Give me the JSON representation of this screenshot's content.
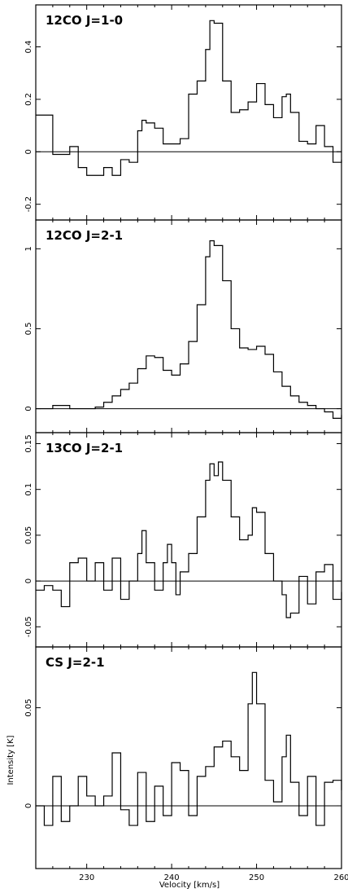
{
  "chart_data": [
    {
      "type": "line",
      "title": "12CO J=1-0",
      "xlim": [
        224,
        260
      ],
      "ylim": [
        -0.26,
        0.56
      ],
      "yticks": [
        -0.2,
        0,
        0.2,
        0.4
      ],
      "ytick_labels": [
        "-0.2",
        "0",
        "0.2",
        "0.4"
      ],
      "step": true,
      "x": [
        224,
        226,
        228,
        229,
        230,
        232,
        233,
        234,
        235,
        236,
        236.5,
        237,
        238,
        239,
        240,
        241,
        242,
        243,
        244,
        244.5,
        245,
        246,
        247,
        248,
        249,
        250,
        251,
        252,
        253,
        253.5,
        254,
        255,
        256,
        257,
        258,
        259,
        260
      ],
      "y": [
        0.14,
        -0.01,
        0.02,
        -0.06,
        -0.09,
        -0.06,
        -0.09,
        -0.03,
        -0.04,
        0.08,
        0.12,
        0.11,
        0.09,
        0.03,
        0.03,
        0.05,
        0.22,
        0.27,
        0.39,
        0.5,
        0.49,
        0.27,
        0.15,
        0.16,
        0.19,
        0.26,
        0.18,
        0.13,
        0.21,
        0.22,
        0.15,
        0.04,
        0.03,
        0.1,
        0.02,
        -0.04,
        -0.03
      ]
    },
    {
      "type": "line",
      "title": "12CO J=2-1",
      "xlim": [
        224,
        260
      ],
      "ylim": [
        -0.15,
        1.18
      ],
      "yticks": [
        0,
        0.5,
        1
      ],
      "ytick_labels": [
        "0",
        "0.5",
        "1"
      ],
      "step": true,
      "x": [
        224,
        226,
        228,
        230,
        231,
        232,
        233,
        234,
        235,
        236,
        237,
        238,
        239,
        240,
        241,
        242,
        243,
        244,
        244.5,
        245,
        246,
        247,
        248,
        249,
        250,
        251,
        252,
        253,
        254,
        255,
        256,
        257,
        258,
        259,
        260
      ],
      "y": [
        0.0,
        0.02,
        0.0,
        0.0,
        0.01,
        0.04,
        0.08,
        0.12,
        0.16,
        0.25,
        0.33,
        0.32,
        0.24,
        0.21,
        0.28,
        0.42,
        0.65,
        0.95,
        1.05,
        1.02,
        0.8,
        0.5,
        0.38,
        0.37,
        0.39,
        0.34,
        0.23,
        0.14,
        0.08,
        0.04,
        0.02,
        0.0,
        -0.02,
        -0.06,
        -0.04
      ]
    },
    {
      "type": "line",
      "title": "13CO J=2-1",
      "xlim": [
        224,
        260
      ],
      "ylim": [
        -0.072,
        0.162
      ],
      "yticks": [
        -0.05,
        0,
        0.05,
        0.1,
        0.15
      ],
      "ytick_labels": [
        "-0.05",
        "0",
        "0.05",
        "0.1",
        "0.15"
      ],
      "step": true,
      "x": [
        224,
        225,
        226,
        227,
        228,
        229,
        230,
        231,
        232,
        233,
        234,
        235,
        236,
        236.5,
        237,
        238,
        239,
        239.5,
        240,
        240.5,
        241,
        242,
        243,
        244,
        244.5,
        245,
        245.5,
        246,
        247,
        248,
        249,
        249.5,
        250,
        251,
        252,
        253,
        253.5,
        254,
        255,
        256,
        257,
        258,
        259,
        260
      ],
      "y": [
        -0.01,
        -0.005,
        -0.01,
        -0.028,
        0.02,
        0.025,
        0.0,
        0.02,
        -0.01,
        0.025,
        -0.02,
        0.0,
        0.03,
        0.055,
        0.02,
        -0.01,
        0.02,
        0.04,
        0.02,
        -0.015,
        0.01,
        0.03,
        0.07,
        0.11,
        0.128,
        0.115,
        0.13,
        0.11,
        0.07,
        0.045,
        0.05,
        0.08,
        0.075,
        0.03,
        0.0,
        -0.015,
        -0.04,
        -0.035,
        0.005,
        -0.025,
        0.01,
        0.018,
        -0.02,
        -0.012
      ]
    },
    {
      "type": "line",
      "title": "CS J=2-1",
      "xlim": [
        224,
        260
      ],
      "ylim": [
        -0.032,
        0.081
      ],
      "yticks": [
        0,
        0.05
      ],
      "ytick_labels": [
        "0",
        "0.05"
      ],
      "ylabel": "Intensity  [K]",
      "xlabel": "Velocity  [km/s]",
      "xticks": [
        230,
        240,
        250,
        260
      ],
      "xtick_labels": [
        "230",
        "240",
        "250",
        "260"
      ],
      "step": true,
      "x": [
        224,
        225,
        226,
        227,
        228,
        229,
        230,
        231,
        232,
        233,
        234,
        235,
        236,
        237,
        238,
        239,
        240,
        241,
        242,
        243,
        244,
        245,
        246,
        247,
        248,
        249,
        249.5,
        250,
        251,
        252,
        253,
        253.5,
        254,
        255,
        256,
        257,
        258,
        259,
        260
      ],
      "y": [
        0.0,
        -0.01,
        0.015,
        -0.008,
        0.0,
        0.015,
        0.005,
        0.0,
        0.005,
        0.027,
        -0.002,
        -0.01,
        0.017,
        -0.008,
        0.01,
        -0.005,
        0.022,
        0.018,
        -0.005,
        0.015,
        0.02,
        0.03,
        0.033,
        0.025,
        0.018,
        0.052,
        0.068,
        0.052,
        0.013,
        0.002,
        0.025,
        0.036,
        0.012,
        -0.005,
        0.015,
        -0.01,
        0.012,
        0.013,
        0.008
      ]
    }
  ]
}
